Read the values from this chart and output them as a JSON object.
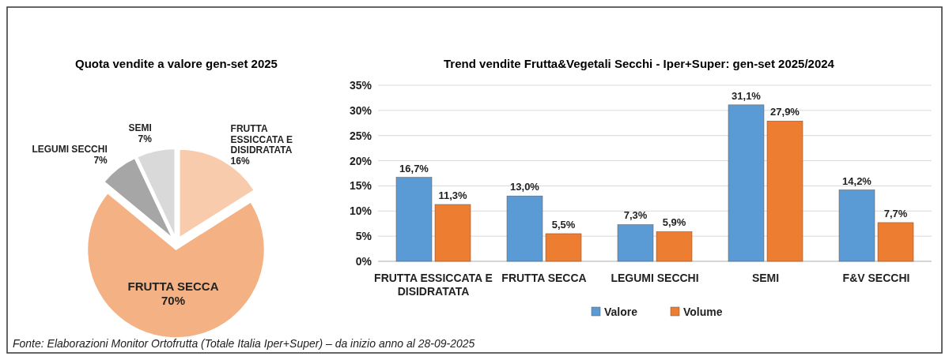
{
  "chart_data": [
    {
      "type": "pie",
      "title": "Quota vendite a valore gen-set 2025",
      "categories": [
        "FRUTTA ESSICCATA E DISIDRATATA",
        "FRUTTA SECCA",
        "LEGUMI SECCHI",
        "SEMI"
      ],
      "values": [
        16,
        70,
        7,
        7
      ],
      "colors": [
        "#f8cbad",
        "#f4b183",
        "#a6a6a6",
        "#d9d9d9"
      ],
      "value_labels": [
        "16%",
        "70%",
        "7%",
        "7%"
      ]
    },
    {
      "type": "bar",
      "title": "Trend vendite Frutta&Vegetali Secchi - Iper+Super: gen-set 2025/2024",
      "categories": [
        "FRUTTA ESSICCATA E DISIDRATATA",
        "FRUTTA SECCA",
        "LEGUMI SECCHI",
        "SEMI",
        "F&V SECCHI"
      ],
      "series": [
        {
          "name": "Valore",
          "color": "#5b9bd5",
          "values": [
            16.7,
            13.0,
            7.3,
            31.1,
            14.2
          ],
          "value_labels": [
            "16,7%",
            "13,0%",
            "7,3%",
            "31,1%",
            "14,2%"
          ]
        },
        {
          "name": "Volume",
          "color": "#ed7d31",
          "values": [
            11.3,
            5.5,
            5.9,
            27.9,
            7.7
          ],
          "value_labels": [
            "11,3%",
            "5,5%",
            "5,9%",
            "27,9%",
            "7,7%"
          ]
        }
      ],
      "ylim": [
        0,
        35
      ],
      "yticks": [
        {
          "value": 0,
          "label": "0%"
        },
        {
          "value": 5,
          "label": "5%"
        },
        {
          "value": 10,
          "label": "10%"
        },
        {
          "value": 15,
          "label": "15%"
        },
        {
          "value": 20,
          "label": "20%"
        },
        {
          "value": 25,
          "label": "25%"
        },
        {
          "value": 30,
          "label": "30%"
        },
        {
          "value": 35,
          "label": "35%"
        }
      ],
      "grid": "y",
      "legend": "bottom",
      "annotations": [
        "Fonte: Elaborazioni Monitor Ortofrutta (Totale Italia Iper+Super) – da inizio anno al 28-09-2025"
      ]
    }
  ]
}
